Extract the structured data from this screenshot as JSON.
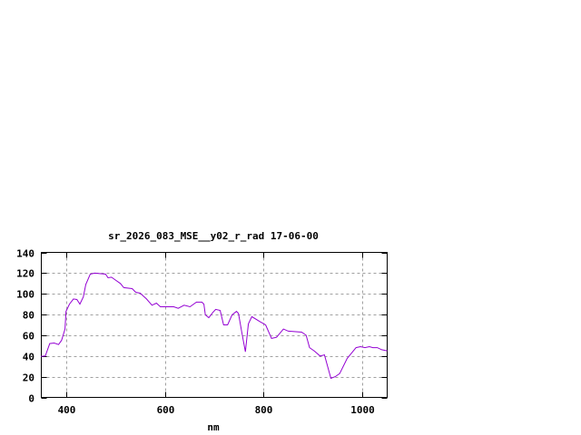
{
  "chart_data": {
    "type": "line",
    "title": "sr_2026_083_MSE__y02_r_rad 17-06-00",
    "xlabel": "nm",
    "ylabel": "",
    "xlim": [
      350,
      1050
    ],
    "ylim": [
      0,
      140
    ],
    "xticks": [
      400,
      600,
      800,
      1000
    ],
    "yticks": [
      0,
      20,
      40,
      60,
      80,
      100,
      120,
      140
    ],
    "grid": true,
    "legend": "none",
    "line_color": "#9400d3",
    "series": [
      {
        "x": [
          349,
          358,
          367,
          376,
          385,
          391,
          398,
          400,
          407,
          415,
          422,
          428,
          435,
          440,
          449,
          458,
          480,
          485,
          492,
          501,
          510,
          517,
          534,
          541,
          550,
          563,
          574,
          583,
          591,
          618,
          627,
          639,
          651,
          664,
          675,
          679,
          682,
          689,
          697,
          703,
          712,
          719,
          727,
          736,
          745,
          749,
          756,
          763,
          769,
          776,
          793,
          804,
          816,
          826,
          840,
          850,
          877,
          886,
          893,
          903,
          914,
          923,
          936,
          945,
          954,
          969,
          987,
          996,
          1005,
          1014,
          1021,
          1030,
          1039,
          1050
        ],
        "y": [
          39.6,
          40,
          52,
          52.5,
          51,
          55,
          66,
          83,
          90,
          95,
          94.5,
          90,
          97,
          109,
          119,
          120,
          119,
          115.5,
          116,
          113,
          110,
          106,
          105,
          101.5,
          100.6,
          95,
          89,
          91,
          87.5,
          87.5,
          86,
          89,
          87.5,
          92,
          92,
          90,
          79.6,
          77,
          82,
          85,
          84,
          70,
          70,
          79.6,
          83,
          81,
          62,
          44,
          71,
          78,
          73,
          70,
          57,
          58,
          66,
          64,
          63,
          60,
          48,
          44.6,
          40,
          41,
          18.4,
          20,
          23,
          37.6,
          48,
          49,
          48,
          49,
          48,
          48,
          46,
          45
        ]
      }
    ]
  }
}
